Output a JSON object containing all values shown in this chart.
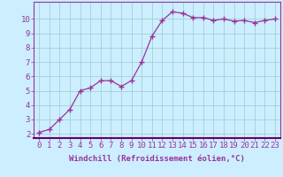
{
  "x": [
    0,
    1,
    2,
    3,
    4,
    5,
    6,
    7,
    8,
    9,
    10,
    11,
    12,
    13,
    14,
    15,
    16,
    17,
    18,
    19,
    20,
    21,
    22,
    23
  ],
  "y": [
    2.1,
    2.3,
    3.0,
    3.7,
    5.0,
    5.2,
    5.7,
    5.7,
    5.3,
    5.7,
    7.0,
    8.8,
    9.9,
    10.5,
    10.4,
    10.1,
    10.1,
    9.9,
    10.0,
    9.85,
    9.9,
    9.75,
    9.9,
    10.0
  ],
  "line_color": "#993399",
  "marker": "+",
  "marker_size": 4,
  "marker_lw": 1.0,
  "line_width": 0.9,
  "background_color": "#cceeff",
  "grid_color": "#99cccc",
  "xlabel": "Windchill (Refroidissement éolien,°C)",
  "xlabel_fontsize": 6.5,
  "ylabel_ticks": [
    2,
    3,
    4,
    5,
    6,
    7,
    8,
    9,
    10
  ],
  "xtick_labels": [
    "0",
    "1",
    "2",
    "3",
    "4",
    "5",
    "6",
    "7",
    "8",
    "9",
    "10",
    "11",
    "12",
    "13",
    "14",
    "15",
    "16",
    "17",
    "18",
    "19",
    "20",
    "21",
    "22",
    "23"
  ],
  "xlim": [
    -0.5,
    23.5
  ],
  "ylim": [
    1.7,
    11.2
  ],
  "tick_color": "#993399",
  "tick_fontsize": 6.5,
  "label_color": "#993399",
  "spine_color": "#993399",
  "spine_bottom_color": "#660066",
  "grid_lw": 0.5
}
